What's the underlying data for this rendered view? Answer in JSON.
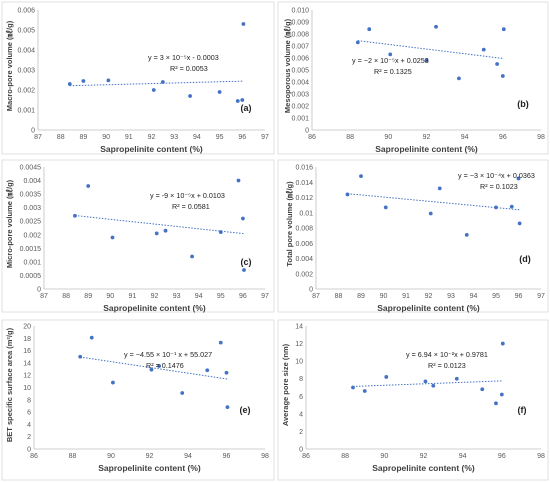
{
  "colors": {
    "point": "#4472C4",
    "trend": "#4472C4",
    "axis": "#bfbfbf",
    "text": "#404040"
  },
  "chart_data": [
    {
      "type": "scatter",
      "panel_label": "(a)",
      "xlabel": "Sapropelinite content (%)",
      "ylabel": "Macro-pore volume (㎖/g)",
      "xlim": [
        87,
        97
      ],
      "ylim": [
        0,
        0.006
      ],
      "xticks": [
        "87",
        "88",
        "89",
        "90",
        "91",
        "92",
        "93",
        "94",
        "95",
        "96",
        "97"
      ],
      "yticks": [
        "0",
        "0.001",
        "0.002",
        "0.003",
        "0.004",
        "0.005",
        "0.006"
      ],
      "trendline": {
        "type": "linear",
        "equation": "y = 3 × 10⁻⁵x - 0.0003",
        "r2": "R² = 0.0053"
      },
      "points": [
        [
          88.4,
          0.0023
        ],
        [
          89.0,
          0.00245
        ],
        [
          90.1,
          0.00248
        ],
        [
          92.1,
          0.002
        ],
        [
          92.5,
          0.0024
        ],
        [
          93.7,
          0.0017
        ],
        [
          95.0,
          0.0019
        ],
        [
          95.8,
          0.00145
        ],
        [
          96.0,
          0.0015
        ],
        [
          96.05,
          0.0053
        ]
      ]
    },
    {
      "type": "scatter",
      "panel_label": "(b)",
      "xlabel": "Sapropelinite content (%)",
      "ylabel": "Mesoporous volume (㎖/g)",
      "xlim": [
        86,
        98
      ],
      "ylim": [
        0,
        0.01
      ],
      "xticks": [
        "86",
        "88",
        "90",
        "92",
        "94",
        "96",
        "98"
      ],
      "yticks": [
        "0",
        "0.001",
        "0.002",
        "0.003",
        "0.004",
        "0.005",
        "0.006",
        "0.007",
        "0.008",
        "0.009",
        "0.010"
      ],
      "trendline": {
        "type": "linear",
        "equation": "y = −2 × 10⁻⁵x + 0.0253",
        "r2": "R² = 0.1325"
      },
      "points": [
        [
          88.4,
          0.0073
        ],
        [
          89.0,
          0.0084
        ],
        [
          90.1,
          0.0063
        ],
        [
          92.0,
          0.0058
        ],
        [
          92.5,
          0.0086
        ],
        [
          93.7,
          0.0043
        ],
        [
          95.0,
          0.0067
        ],
        [
          95.7,
          0.0055
        ],
        [
          96.0,
          0.0045
        ],
        [
          96.05,
          0.0084
        ]
      ]
    },
    {
      "type": "scatter",
      "panel_label": "(c)",
      "xlabel": "Sapropelinite content (%)",
      "ylabel": "Micro-pore volume (㎖/g)",
      "xlim": [
        87,
        97
      ],
      "ylim": [
        0,
        0.0045
      ],
      "xticks": [
        "87",
        "88",
        "89",
        "90",
        "91",
        "92",
        "93",
        "94",
        "95",
        "96",
        "97"
      ],
      "yticks": [
        "0",
        "0.0005",
        "0.001",
        "0.0015",
        "0.002",
        "0.0025",
        "0.003",
        "0.0035",
        "0.004",
        "0.0045"
      ],
      "trendline": {
        "type": "linear",
        "equation": "y = -9 × 10⁻⁵x + 0.0103",
        "r2": "R² = 0.0581"
      },
      "points": [
        [
          88.4,
          0.0027
        ],
        [
          89.0,
          0.0038
        ],
        [
          90.1,
          0.0019
        ],
        [
          92.1,
          0.00205
        ],
        [
          92.5,
          0.00215
        ],
        [
          93.7,
          0.0012
        ],
        [
          95.0,
          0.0021
        ],
        [
          95.8,
          0.004
        ],
        [
          96.0,
          0.0026
        ],
        [
          96.05,
          0.0007
        ]
      ]
    },
    {
      "type": "scatter",
      "panel_label": "(d)",
      "xlabel": "Sapropelinite content (%)",
      "ylabel": "Total pore volume (㎖/g)",
      "xlim": [
        87,
        97
      ],
      "ylim": [
        0,
        0.016
      ],
      "xticks": [
        "87",
        "88",
        "89",
        "90",
        "91",
        "92",
        "93",
        "94",
        "95",
        "96",
        "97"
      ],
      "yticks": [
        "0",
        "0.002",
        "0.004",
        "0.006",
        "0.008",
        "0.01",
        "0.012",
        "0.014",
        "0.016"
      ],
      "trendline": {
        "type": "linear",
        "equation": "y = −3 × 10⁻⁴x + 0.0363",
        "r2": "R² = 0.1023"
      },
      "points": [
        [
          88.4,
          0.0124
        ],
        [
          89.0,
          0.0148
        ],
        [
          90.1,
          0.0107
        ],
        [
          92.1,
          0.0099
        ],
        [
          92.5,
          0.0132
        ],
        [
          93.7,
          0.0071
        ],
        [
          95.0,
          0.0107
        ],
        [
          95.7,
          0.0108
        ],
        [
          96.0,
          0.0145
        ],
        [
          96.05,
          0.0086
        ]
      ]
    },
    {
      "type": "scatter",
      "panel_label": "(e)",
      "xlabel": "Sapropelinite content (%)",
      "ylabel": "BET specific surface area (m²/g)",
      "xlim": [
        86,
        98
      ],
      "ylim": [
        0,
        20
      ],
      "xticks": [
        "86",
        "88",
        "90",
        "92",
        "94",
        "96",
        "98"
      ],
      "yticks": [
        "0",
        "2",
        "4",
        "6",
        "8",
        "10",
        "12",
        "14",
        "16",
        "18",
        "20"
      ],
      "trendline": {
        "type": "linear",
        "equation": "y = −4.55 × 10⁻¹ x + 55.027",
        "r2": "R² = 0.1476"
      },
      "points": [
        [
          88.4,
          15.0
        ],
        [
          89.0,
          18.1
        ],
        [
          90.1,
          10.8
        ],
        [
          92.1,
          12.9
        ],
        [
          92.5,
          13.5
        ],
        [
          93.7,
          9.1
        ],
        [
          95.0,
          12.8
        ],
        [
          95.7,
          17.3
        ],
        [
          96.0,
          12.4
        ],
        [
          96.05,
          6.8
        ]
      ]
    },
    {
      "type": "scatter",
      "panel_label": "(f)",
      "xlabel": "Sapropelinite content (%)",
      "ylabel": "Average pore size (nm)",
      "xlim": [
        86,
        98
      ],
      "ylim": [
        0,
        14
      ],
      "xticks": [
        "86",
        "88",
        "90",
        "92",
        "94",
        "96",
        "98"
      ],
      "yticks": [
        "0",
        "2",
        "4",
        "6",
        "8",
        "10",
        "12",
        "14"
      ],
      "trendline": {
        "type": "linear",
        "equation": "y = 6.94 × 10⁻²x + 0.9781",
        "r2": "R² = 0.0123"
      },
      "points": [
        [
          88.4,
          7.0
        ],
        [
          89.0,
          6.6
        ],
        [
          90.1,
          8.2
        ],
        [
          92.1,
          7.7
        ],
        [
          92.5,
          7.2
        ],
        [
          93.7,
          8.0
        ],
        [
          95.0,
          6.8
        ],
        [
          95.7,
          5.2
        ],
        [
          96.0,
          6.2
        ],
        [
          96.05,
          12.0
        ]
      ]
    }
  ]
}
